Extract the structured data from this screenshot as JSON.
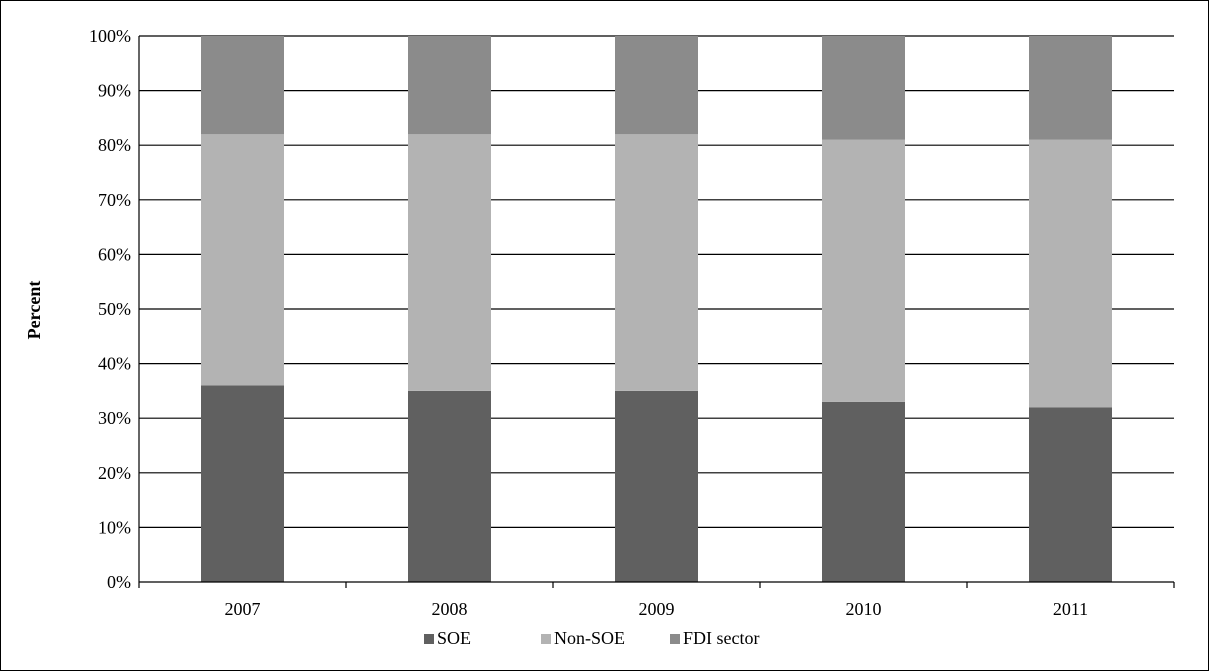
{
  "chart_data": {
    "type": "bar",
    "stacked": true,
    "percent": true,
    "title": "",
    "xlabel": "",
    "ylabel": "Percent",
    "ylim": [
      0,
      100
    ],
    "yticks": [
      "0%",
      "10%",
      "20%",
      "30%",
      "40%",
      "50%",
      "60%",
      "70%",
      "80%",
      "90%",
      "100%"
    ],
    "grid": true,
    "legend_position": "bottom",
    "categories": [
      "2007",
      "2008",
      "2009",
      "2010",
      "2011"
    ],
    "series": [
      {
        "name": "SOE",
        "values": [
          36,
          35,
          35,
          33,
          32
        ],
        "color": "#606060"
      },
      {
        "name": "Non-SOE",
        "values": [
          46,
          47,
          47,
          48,
          49
        ],
        "color": "#b3b3b3"
      },
      {
        "name": "FDI sector",
        "values": [
          18,
          18,
          18,
          19,
          19
        ],
        "color": "#8b8b8b"
      }
    ]
  }
}
